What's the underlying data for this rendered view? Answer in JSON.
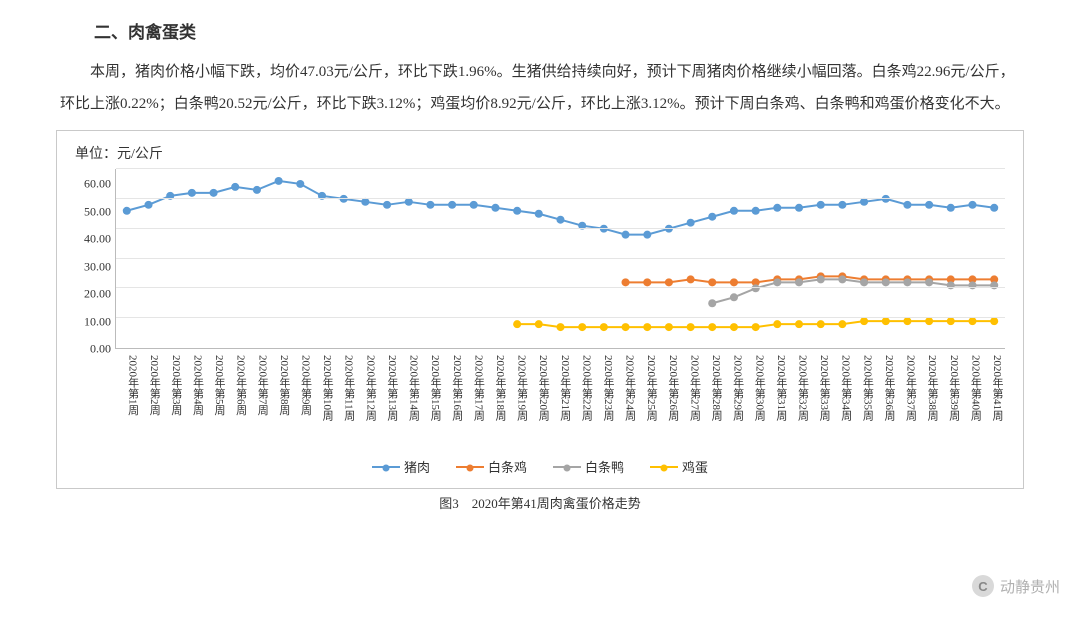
{
  "section_title": "二、肉禽蛋类",
  "paragraph": "本周，猪肉价格小幅下跌，均价47.03元/公斤，环比下跌1.96%。生猪供给持续向好，预计下周猪肉价格继续小幅回落。白条鸡22.96元/公斤，环比上涨0.22%；白条鸭20.52元/公斤，环比下跌3.12%；鸡蛋均价8.92元/公斤，环比上涨3.12%。预计下周白条鸡、白条鸭和鸡蛋价格变化不大。",
  "chart": {
    "type": "line",
    "unit_label": "单位：元/公斤",
    "ylim": [
      0,
      60
    ],
    "ytick_step": 10,
    "yticks": [
      "60.00",
      "50.00",
      "40.00",
      "30.00",
      "20.00",
      "10.00",
      "0.00"
    ],
    "grid_color": "#e5e5e5",
    "axis_color": "#bbbbbb",
    "background_color": "#ffffff",
    "categories": [
      "2020年第1周",
      "2020年第2周",
      "2020年第3周",
      "2020年第4周",
      "2020年第5周",
      "2020年第6周",
      "2020年第7周",
      "2020年第8周",
      "2020年第9周",
      "2020年第10周",
      "2020年第11周",
      "2020年第12周",
      "2020年第13周",
      "2020年第14周",
      "2020年第15周",
      "2020年第16周",
      "2020年第17周",
      "2020年第18周",
      "2020年第19周",
      "2020年第20周",
      "2020年第21周",
      "2020年第22周",
      "2020年第23周",
      "2020年第24周",
      "2020年第25周",
      "2020年第26周",
      "2020年第27周",
      "2020年第28周",
      "2020年第29周",
      "2020年第30周",
      "2020年第31周",
      "2020年第32周",
      "2020年第33周",
      "2020年第34周",
      "2020年第35周",
      "2020年第36周",
      "2020年第37周",
      "2020年第38周",
      "2020年第39周",
      "2020年第40周",
      "2020年第41周"
    ],
    "series": [
      {
        "name": "猪肉",
        "color": "#5b9bd5",
        "marker": "circle",
        "data": [
          46,
          48,
          51,
          52,
          52,
          54,
          53,
          56,
          55,
          51,
          50,
          49,
          48,
          49,
          48,
          48,
          48,
          47,
          46,
          45,
          43,
          41,
          40,
          38,
          38,
          40,
          42,
          44,
          46,
          46,
          47,
          47,
          48,
          48,
          49,
          50,
          48,
          48,
          47,
          48,
          47
        ]
      },
      {
        "name": "白条鸡",
        "color": "#ed7d31",
        "marker": "circle",
        "data": [
          null,
          null,
          null,
          null,
          null,
          null,
          null,
          null,
          null,
          null,
          null,
          null,
          null,
          null,
          null,
          null,
          null,
          null,
          null,
          null,
          null,
          null,
          null,
          22,
          22,
          22,
          23,
          22,
          22,
          22,
          23,
          23,
          24,
          24,
          23,
          23,
          23,
          23,
          23,
          23,
          23
        ]
      },
      {
        "name": "白条鸭",
        "color": "#a5a5a5",
        "marker": "circle",
        "data": [
          null,
          null,
          null,
          null,
          null,
          null,
          null,
          null,
          null,
          null,
          null,
          null,
          null,
          null,
          null,
          null,
          null,
          null,
          null,
          null,
          null,
          null,
          null,
          null,
          null,
          null,
          null,
          15,
          17,
          20,
          22,
          22,
          23,
          23,
          22,
          22,
          22,
          22,
          21,
          21,
          21
        ]
      },
      {
        "name": "鸡蛋",
        "color": "#ffc000",
        "marker": "circle",
        "data": [
          null,
          null,
          null,
          null,
          null,
          null,
          null,
          null,
          null,
          null,
          null,
          null,
          null,
          null,
          null,
          null,
          null,
          null,
          8,
          8,
          7,
          7,
          7,
          7,
          7,
          7,
          7,
          7,
          7,
          7,
          8,
          8,
          8,
          8,
          9,
          9,
          9,
          9,
          9,
          9,
          9
        ]
      }
    ],
    "line_width": 2,
    "marker_size": 4,
    "label_fontsize": 12
  },
  "caption": "图3　2020年第41周肉禽蛋价格走势",
  "watermark": {
    "icon_text": "C",
    "text": "动静贵州"
  }
}
